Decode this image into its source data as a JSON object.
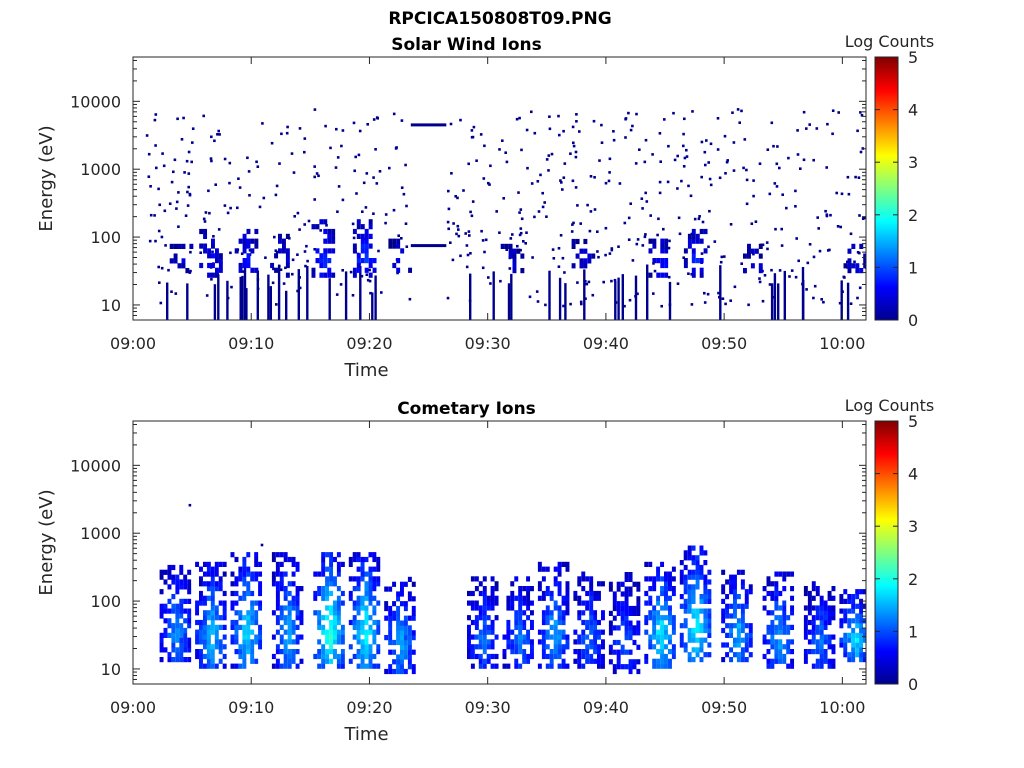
{
  "figure_title": "RPCICA150808T09.PNG",
  "colors": {
    "axis": "#262626",
    "marker": "#00008f",
    "background": "#ffffff"
  },
  "chart_data": [
    {
      "type": "heatmap",
      "title": "Solar Wind Ions",
      "xlabel": "Time",
      "ylabel": "Energy (eV)",
      "x_ticks": [
        "09:00",
        "09:10",
        "09:20",
        "09:30",
        "09:40",
        "09:50",
        "10:00"
      ],
      "x_range": [
        "09:00",
        "10:02"
      ],
      "y_scale": "log",
      "y_range": [
        6,
        45000
      ],
      "y_ticks": [
        10,
        100,
        1000,
        10000
      ],
      "y_tick_labels": [
        "10",
        "100",
        "1000",
        "10000"
      ],
      "colorbar": {
        "label": "Log Counts",
        "min": 0,
        "max": 5,
        "ticks": [
          "0",
          "1",
          "2",
          "3",
          "4",
          "5"
        ],
        "colormap": "jet"
      },
      "grid": false,
      "clusters": [
        {
          "t": 4.0,
          "e_low": 35,
          "e_high": 90,
          "log_counts": 0.4
        },
        {
          "t": 6.5,
          "e_low": 30,
          "e_high": 150,
          "log_counts": 0.6
        },
        {
          "t": 9.5,
          "e_low": 30,
          "e_high": 150,
          "log_counts": 0.7
        },
        {
          "t": 12.5,
          "e_low": 30,
          "e_high": 120,
          "log_counts": 0.5
        },
        {
          "t": 16.0,
          "e_low": 30,
          "e_high": 200,
          "log_counts": 0.9
        },
        {
          "t": 19.5,
          "e_low": 30,
          "e_high": 200,
          "log_counts": 1.0
        },
        {
          "t": 22.5,
          "e_low": 30,
          "e_high": 100,
          "log_counts": 0.5
        },
        {
          "t": 32.0,
          "e_low": 35,
          "e_high": 80,
          "log_counts": 0.4
        },
        {
          "t": 38.0,
          "e_low": 35,
          "e_high": 100,
          "log_counts": 0.4
        },
        {
          "t": 44.5,
          "e_low": 30,
          "e_high": 110,
          "log_counts": 0.7
        },
        {
          "t": 47.5,
          "e_low": 30,
          "e_high": 150,
          "log_counts": 0.8
        },
        {
          "t": 52.5,
          "e_low": 35,
          "e_high": 80,
          "log_counts": 0.4
        },
        {
          "t": 61.0,
          "e_low": 35,
          "e_high": 80,
          "log_counts": 0.5
        }
      ],
      "gap": {
        "t_start": 23.5,
        "t_end": 26.5,
        "levels_eV": [
          4500,
          75
        ]
      }
    },
    {
      "type": "heatmap",
      "title": "Cometary Ions",
      "xlabel": "Time",
      "ylabel": "Energy (eV)",
      "x_ticks": [
        "09:00",
        "09:10",
        "09:20",
        "09:30",
        "09:40",
        "09:50",
        "10:00"
      ],
      "x_range": [
        "09:00",
        "10:02"
      ],
      "y_scale": "log",
      "y_range": [
        6,
        45000
      ],
      "y_ticks": [
        10,
        100,
        1000,
        10000
      ],
      "y_tick_labels": [
        "10",
        "100",
        "1000",
        "10000"
      ],
      "colorbar": {
        "label": "Log Counts",
        "min": 0,
        "max": 5,
        "ticks": [
          "0",
          "1",
          "2",
          "3",
          "4",
          "5"
        ],
        "colormap": "jet"
      },
      "grid": false,
      "clusters": [
        {
          "t": 3.5,
          "e_low": 15,
          "e_high": 400,
          "log_counts": 1.4
        },
        {
          "t": 6.5,
          "e_low": 12,
          "e_high": 400,
          "log_counts": 1.7
        },
        {
          "t": 9.5,
          "e_low": 12,
          "e_high": 600,
          "log_counts": 1.8
        },
        {
          "t": 13.0,
          "e_low": 12,
          "e_high": 600,
          "log_counts": 1.5
        },
        {
          "t": 16.5,
          "e_low": 12,
          "e_high": 600,
          "log_counts": 2.2
        },
        {
          "t": 19.5,
          "e_low": 12,
          "e_high": 600,
          "log_counts": 2.0
        },
        {
          "t": 22.5,
          "e_low": 10,
          "e_high": 250,
          "log_counts": 1.5
        },
        {
          "t": 29.5,
          "e_low": 12,
          "e_high": 250,
          "log_counts": 1.2
        },
        {
          "t": 32.5,
          "e_low": 12,
          "e_high": 250,
          "log_counts": 1.3
        },
        {
          "t": 35.5,
          "e_low": 12,
          "e_high": 400,
          "log_counts": 1.5
        },
        {
          "t": 38.5,
          "e_low": 12,
          "e_high": 300,
          "log_counts": 1.2
        },
        {
          "t": 41.5,
          "e_low": 10,
          "e_high": 300,
          "log_counts": 1.1
        },
        {
          "t": 44.5,
          "e_low": 12,
          "e_high": 400,
          "log_counts": 1.9
        },
        {
          "t": 47.5,
          "e_low": 15,
          "e_high": 700,
          "log_counts": 2.0
        },
        {
          "t": 51.0,
          "e_low": 15,
          "e_high": 300,
          "log_counts": 1.6
        },
        {
          "t": 54.5,
          "e_low": 12,
          "e_high": 300,
          "log_counts": 1.5
        },
        {
          "t": 58.0,
          "e_low": 12,
          "e_high": 200,
          "log_counts": 1.2
        },
        {
          "t": 61.0,
          "e_low": 15,
          "e_high": 150,
          "log_counts": 1.8
        }
      ]
    }
  ]
}
